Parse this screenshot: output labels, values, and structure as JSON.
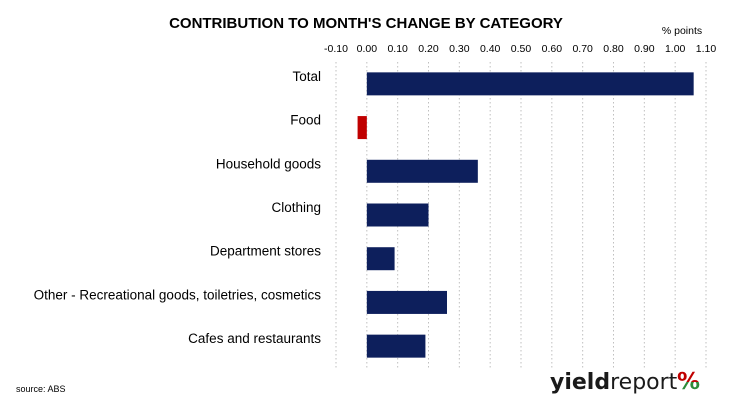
{
  "chart_data": {
    "type": "bar",
    "orientation": "horizontal",
    "title": "CONTRIBUTION TO MONTH'S CHANGE BY CATEGORY",
    "unit_label": "% points",
    "xlim": [
      -0.1,
      1.1
    ],
    "x_ticks": [
      -0.1,
      0.0,
      0.1,
      0.2,
      0.3,
      0.4,
      0.5,
      0.6,
      0.7,
      0.8,
      0.9,
      1.0,
      1.1
    ],
    "x_tick_labels": [
      "-0.10",
      "0.00",
      "0.10",
      "0.20",
      "0.30",
      "0.40",
      "0.50",
      "0.60",
      "0.70",
      "0.80",
      "0.90",
      "1.00",
      "1.10"
    ],
    "grid": "vertical-dotted",
    "x_axis_position": "top",
    "categories": [
      "Total",
      "Food",
      "Household goods",
      "Clothing",
      "Department stores",
      "Other - Recreational goods, toiletries, cosmetics",
      "Cafes and restaurants"
    ],
    "values": [
      1.06,
      -0.03,
      0.36,
      0.2,
      0.09,
      0.26,
      0.19
    ],
    "colors": {
      "positive": "#0d1f5c",
      "negative": "#c00000"
    }
  },
  "source": "source: ABS",
  "logo": {
    "text_bold": "yield",
    "text_regular": "report",
    "symbol": "%",
    "symbol_colors": [
      "#c00000",
      "#2e8b3a"
    ]
  }
}
